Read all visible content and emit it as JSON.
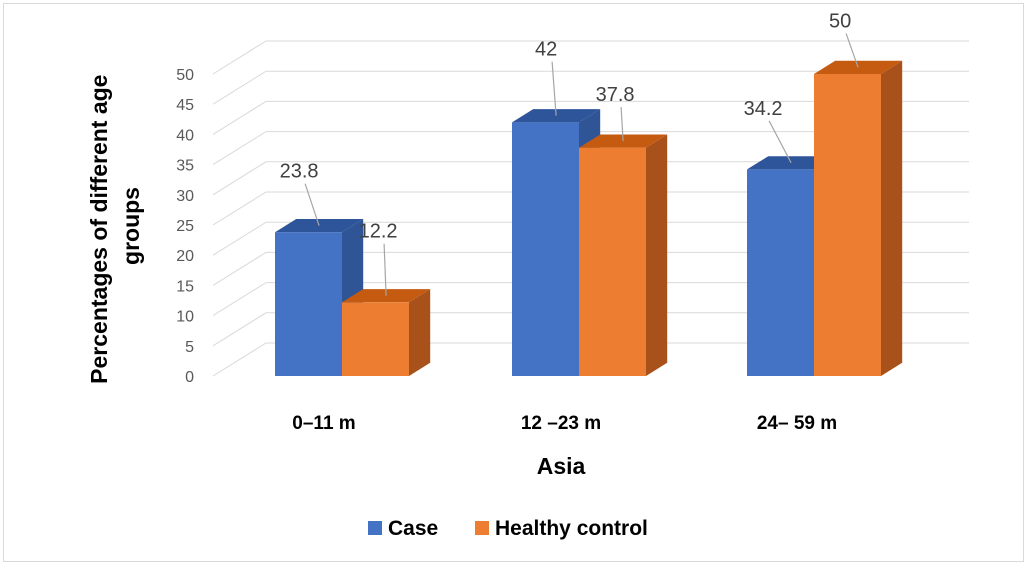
{
  "chart_data": {
    "type": "bar",
    "style": "3d-clustered-column",
    "title": "",
    "xlabel": "Asia",
    "ylabel_lines": [
      "Percentages of different  age",
      "groups"
    ],
    "categories": [
      "0–11 m",
      "12 –23 m",
      "24– 59 m"
    ],
    "series": [
      {
        "name": "Case",
        "values": [
          23.8,
          42,
          34.2
        ],
        "color": "#4472c4",
        "side_color": "#2f5597",
        "top_color": "#2e549a"
      },
      {
        "name": "Healthy control",
        "values": [
          12.2,
          37.8,
          50
        ],
        "color": "#ed7d31",
        "side_color": "#a9511a",
        "top_color": "#c55a11"
      }
    ],
    "data_labels": [
      [
        "23.8",
        "42",
        "34.2"
      ],
      [
        "12.2",
        "37.8",
        "50"
      ]
    ],
    "ylim": [
      0,
      50
    ],
    "yticks": [
      0,
      5,
      10,
      15,
      20,
      25,
      30,
      35,
      40,
      45,
      50
    ],
    "grid": true,
    "legend": "bottom",
    "gridline_color": "#d9d9d9"
  }
}
